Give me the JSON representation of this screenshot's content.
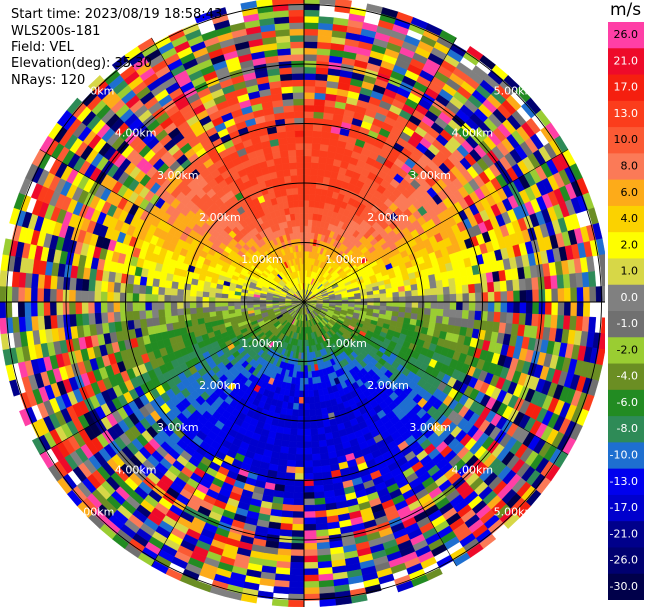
{
  "header": {
    "start_time": "Start time: 2023/08/19 18:58:43",
    "instrument": "WLS200s-181",
    "field": "Field: VEL",
    "elevation": "Elevation(deg): 35.30",
    "nrays": "NRays: 120"
  },
  "colorbar": {
    "unit": "m/s",
    "levels": [
      {
        "label": "26.0",
        "color": "#ff3fa6"
      },
      {
        "label": "21.0",
        "color": "#ee0a2a"
      },
      {
        "label": "17.0",
        "color": "#f51f0f"
      },
      {
        "label": "13.0",
        "color": "#fb3d1c"
      },
      {
        "label": "10.0",
        "color": "#fb5a34"
      },
      {
        "label": "8.0",
        "color": "#fb7a57"
      },
      {
        "label": "6.0",
        "color": "#fdab19"
      },
      {
        "label": "4.0",
        "color": "#fbd200"
      },
      {
        "label": "2.0",
        "color": "#fefe00"
      },
      {
        "label": "1.0",
        "color": "#d7d747"
      },
      {
        "label": "0.0",
        "color": "#808080"
      },
      {
        "label": "-1.0",
        "color": "#707070"
      },
      {
        "label": "-2.0",
        "color": "#9acd32"
      },
      {
        "label": "-4.0",
        "color": "#6b8e23"
      },
      {
        "label": "-6.0",
        "color": "#228b22"
      },
      {
        "label": "-8.0",
        "color": "#2e8b57"
      },
      {
        "label": "-10.0",
        "color": "#1e6fd0"
      },
      {
        "label": "-13.0",
        "color": "#0000ee"
      },
      {
        "label": "-17.0",
        "color": "#0000cd"
      },
      {
        "label": "-21.0",
        "color": "#00008b"
      },
      {
        "label": "-26.0",
        "color": "#000070"
      },
      {
        "label": "-30.0",
        "color": "#00004a"
      }
    ]
  },
  "chart_data": {
    "type": "heatmap",
    "title": "",
    "field": "VEL",
    "units": "m/s",
    "nrays": 120,
    "elevation_deg": 35.3,
    "range_rings_km": [
      1,
      2,
      3,
      4,
      5
    ],
    "ring_labels": [
      "1.00km",
      "2.00km",
      "3.00km",
      "4.00km",
      "5.00km"
    ],
    "color_levels": [
      26.0,
      21.0,
      17.0,
      13.0,
      10.0,
      8.0,
      6.0,
      4.0,
      2.0,
      1.0,
      0.0,
      -1.0,
      -2.0,
      -4.0,
      -6.0,
      -8.0,
      -10.0,
      -13.0,
      -17.0,
      -21.0,
      -26.0,
      -30.0
    ],
    "pattern": "positive velocities (yellow to red) toward the north, negative velocities (green to blue) toward the south; noisy multicolor values beyond about 3 km"
  }
}
